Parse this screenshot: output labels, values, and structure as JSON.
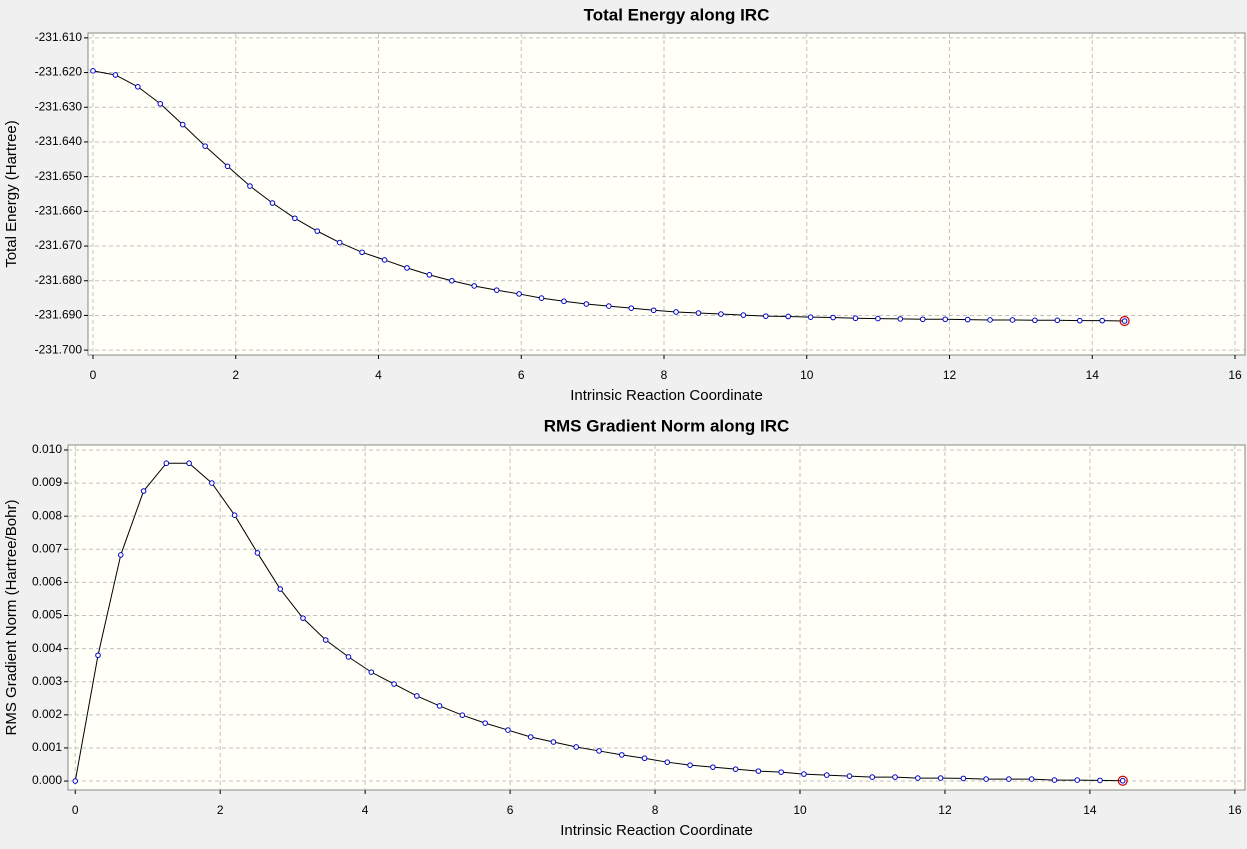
{
  "chart_data": [
    {
      "type": "line",
      "title": "Total Energy along IRC",
      "x_label": "Intrinsic Reaction Coordinate",
      "y_label": "Total Energy (Hartree)",
      "x": [
        0,
        0.314,
        0.628,
        0.943,
        1.257,
        1.571,
        1.885,
        2.199,
        2.514,
        2.828,
        3.142,
        3.456,
        3.77,
        4.085,
        4.399,
        4.713,
        5.027,
        5.341,
        5.656,
        5.97,
        6.284,
        6.598,
        6.912,
        7.227,
        7.541,
        7.855,
        8.169,
        8.483,
        8.798,
        9.112,
        9.426,
        9.74,
        10.054,
        10.369,
        10.683,
        10.997,
        11.311,
        11.625,
        11.94,
        12.254,
        12.568,
        12.882,
        13.196,
        13.511,
        13.825,
        14.139,
        14.453
      ],
      "series": [
        {
          "color": "#000000",
          "values": [
            -231.6195,
            -231.6207,
            -231.6241,
            -231.629,
            -231.635,
            -231.6412,
            -231.647,
            -231.6527,
            -231.6576,
            -231.662,
            -231.6657,
            -231.669,
            -231.6718,
            -231.674,
            -231.6763,
            -231.6783,
            -231.68,
            -231.6815,
            -231.6827,
            -231.6838,
            -231.685,
            -231.6859,
            -231.6867,
            -231.6873,
            -231.6879,
            -231.6885,
            -231.689,
            -231.6893,
            -231.6896,
            -231.6899,
            -231.6902,
            -231.6903,
            -231.6905,
            -231.6906,
            -231.6908,
            -231.6909,
            -231.691,
            -231.6911,
            -231.6911,
            -231.6912,
            -231.6913,
            -231.6913,
            -231.6914,
            -231.6914,
            -231.6915,
            -231.6915,
            -231.6916
          ]
        }
      ],
      "xlim": [
        -0.07,
        16.14
      ],
      "xticks": [
        0,
        2,
        4,
        6,
        8,
        10,
        12,
        14,
        16
      ],
      "ylim": [
        -231.7014,
        -231.6086
      ],
      "yticks": [
        {
          "value": -231.61,
          "label": "-231.610"
        },
        {
          "value": -231.62,
          "label": "-231.620"
        },
        {
          "value": -231.63,
          "label": "-231.630"
        },
        {
          "value": -231.64,
          "label": "-231.640"
        },
        {
          "value": -231.65,
          "label": "-231.650"
        },
        {
          "value": -231.66,
          "label": "-231.660"
        },
        {
          "value": -231.67,
          "label": "-231.670"
        },
        {
          "value": -231.68,
          "label": "-231.680"
        },
        {
          "value": -231.69,
          "label": "-231.690"
        },
        {
          "value": -231.7,
          "label": "-231.700"
        }
      ],
      "grid": true,
      "marker_color": "#0000cc",
      "highlight_color": "#cc0000"
    },
    {
      "type": "line",
      "title": "RMS Gradient Norm along IRC",
      "x_label": "Intrinsic Reaction Coordinate",
      "y_label": "RMS Gradient Norm (Hartree/Bohr)",
      "x": [
        0,
        0.314,
        0.628,
        0.943,
        1.257,
        1.571,
        1.885,
        2.199,
        2.514,
        2.828,
        3.142,
        3.456,
        3.77,
        4.085,
        4.399,
        4.713,
        5.027,
        5.341,
        5.656,
        5.97,
        6.284,
        6.598,
        6.912,
        7.227,
        7.541,
        7.855,
        8.169,
        8.483,
        8.798,
        9.112,
        9.426,
        9.74,
        10.054,
        10.369,
        10.683,
        10.997,
        11.311,
        11.625,
        11.94,
        12.254,
        12.568,
        12.882,
        13.196,
        13.511,
        13.825,
        14.139,
        14.453
      ],
      "series": [
        {
          "color": "#000000",
          "values": [
            0,
            0.0038,
            0.00683,
            0.00876,
            0.0096,
            0.0096,
            0.009,
            0.00803,
            0.00689,
            0.0058,
            0.00492,
            0.00426,
            0.00375,
            0.00329,
            0.00293,
            0.00257,
            0.00227,
            0.00199,
            0.00175,
            0.00154,
            0.00133,
            0.00118,
            0.00103,
            0.00091,
            0.00079,
            0.00069,
            0.00057,
            0.00048,
            0.00042,
            0.00036,
            0.0003,
            0.00027,
            0.00021,
            0.00018,
            0.00015,
            0.00012,
            0.00012,
            9e-05,
            9e-05,
            8e-05,
            6e-05,
            6e-05,
            6e-05,
            3e-05,
            3e-05,
            2e-05,
            1e-05
          ]
        }
      ],
      "xlim": [
        -0.1,
        16.14
      ],
      "xticks": [
        0,
        2,
        4,
        6,
        8,
        10,
        12,
        14,
        16
      ],
      "ylim": [
        -0.00027,
        0.01015
      ],
      "yticks": [
        {
          "value": 0,
          "label": "0.000"
        },
        {
          "value": 0.001,
          "label": "0.001"
        },
        {
          "value": 0.002,
          "label": "0.002"
        },
        {
          "value": 0.003,
          "label": "0.003"
        },
        {
          "value": 0.004,
          "label": "0.004"
        },
        {
          "value": 0.005,
          "label": "0.005"
        },
        {
          "value": 0.006,
          "label": "0.006"
        },
        {
          "value": 0.007,
          "label": "0.007"
        },
        {
          "value": 0.008,
          "label": "0.008"
        },
        {
          "value": 0.009,
          "label": "0.009"
        },
        {
          "value": 0.01,
          "label": "0.010"
        }
      ],
      "grid": true,
      "marker_color": "#0000cc",
      "highlight_color": "#cc0000"
    }
  ]
}
